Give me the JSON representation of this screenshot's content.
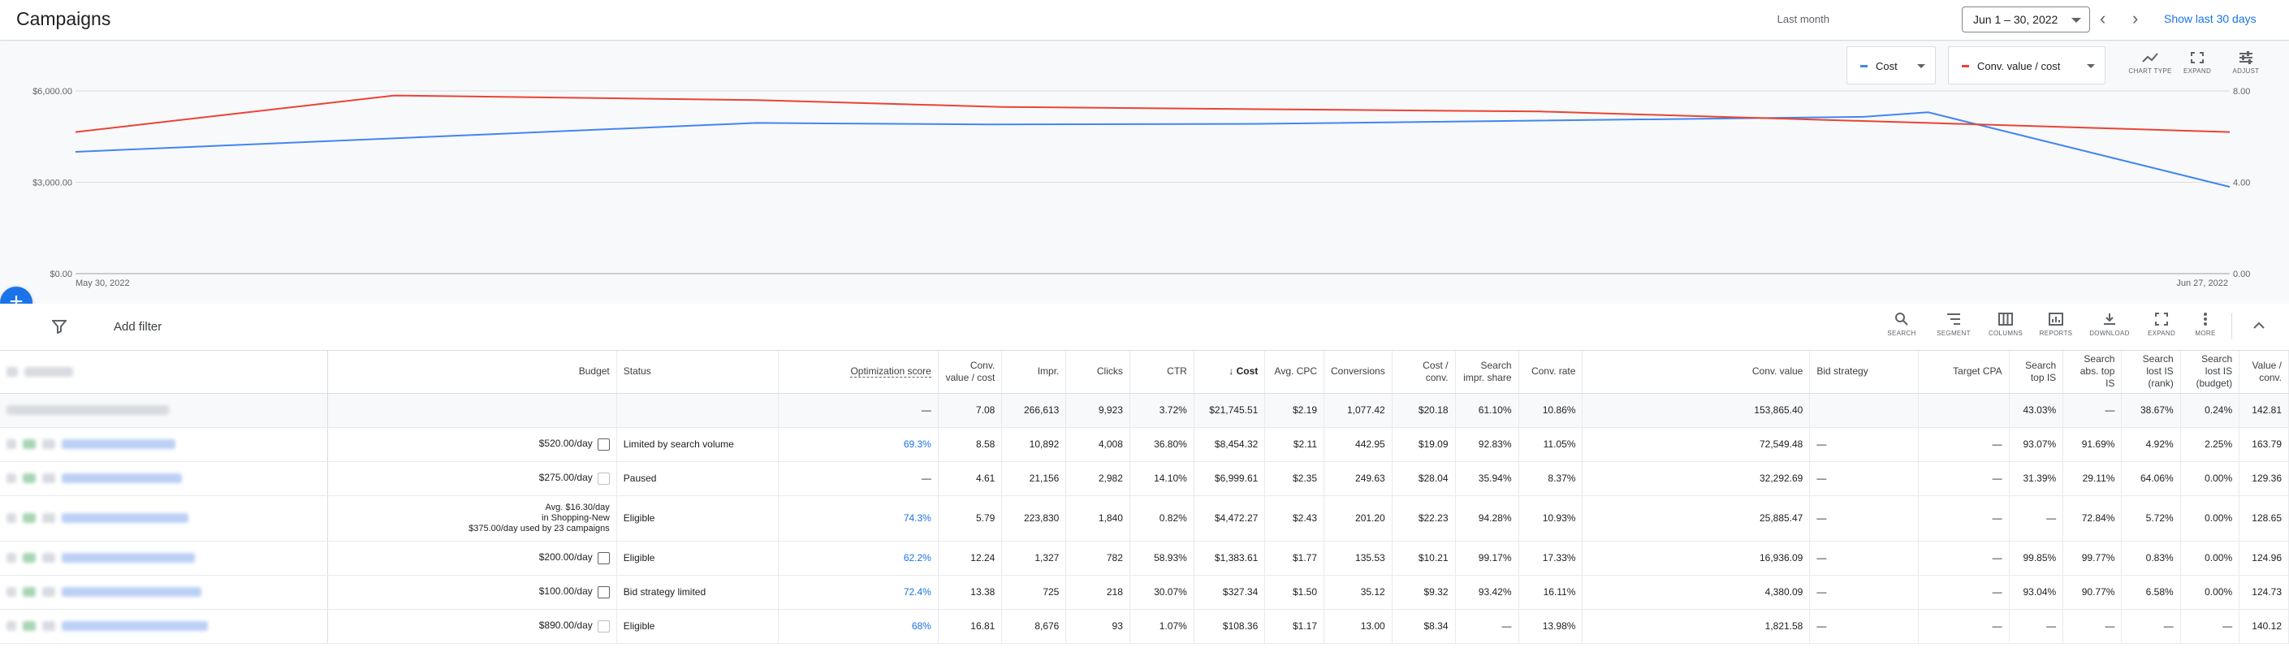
{
  "header": {
    "title": "Campaigns",
    "last_month_label": "Last month",
    "date_range": "Jun 1 – 30, 2022",
    "show_last": "Show last 30 days"
  },
  "chart_controls": {
    "metric1": {
      "label": "Cost",
      "color": "#4285f4"
    },
    "metric2": {
      "label": "Conv. value / cost",
      "color": "#ea4335"
    },
    "tools": [
      "CHART TYPE",
      "EXPAND",
      "ADJUST"
    ]
  },
  "chart_data": {
    "type": "line",
    "x_start_label": "May 30, 2022",
    "x_end_label": "Jun 27, 2022",
    "left_ticks": [
      "$6,000.00",
      "$3,000.00",
      "$0.00"
    ],
    "right_ticks": [
      "8.00",
      "4.00",
      "0.00"
    ],
    "left_ylim": [
      0,
      6000
    ],
    "right_ylim": [
      0,
      8
    ],
    "grid": true,
    "series": [
      {
        "name": "Cost",
        "axis": "left",
        "color": "#4285f4",
        "values": [
          4000,
          4950,
          4900,
          4920,
          5150,
          5300,
          2850
        ]
      },
      {
        "name": "Conv. value / cost",
        "axis": "right",
        "color": "#ea4335",
        "values": [
          6.2,
          7.8,
          7.6,
          7.3,
          7.2,
          7.1,
          6.6,
          6.2
        ]
      }
    ]
  },
  "filter": {
    "add_filter": "Add filter"
  },
  "table_tools": [
    "SEARCH",
    "SEGMENT",
    "COLUMNS",
    "REPORTS",
    "DOWNLOAD",
    "EXPAND",
    "MORE"
  ],
  "table": {
    "columns": [
      "Budget",
      "Status",
      "Optimization score",
      "Conv. value / cost",
      "Impr.",
      "Clicks",
      "CTR",
      "Cost",
      "Avg. CPC",
      "Conversions",
      "Cost / conv.",
      "Search impr. share",
      "Conv. rate",
      "Conv. value",
      "Bid strategy",
      "Target CPA",
      "Search top IS",
      "Search abs. top IS",
      "Search lost IS (rank)",
      "Search lost IS (budget)",
      "Value / conv."
    ],
    "total": [
      "",
      "",
      "—",
      "7.08",
      "266,613",
      "9,923",
      "3.72%",
      "$21,745.51",
      "$2.19",
      "1,077.42",
      "$20.18",
      "61.10%",
      "10.86%",
      "153,865.40",
      "",
      "",
      "43.03%",
      "—",
      "38.67%",
      "0.24%",
      "142.81"
    ],
    "rows": [
      {
        "budget": "$520.00/day",
        "budget_icon": "active",
        "status": "Limited by search volume",
        "vals": [
          "69.3%",
          "8.58",
          "10,892",
          "4,008",
          "36.80%",
          "$8,454.32",
          "$2.11",
          "442.95",
          "$19.09",
          "92.83%",
          "11.05%",
          "72,549.48",
          "—",
          "—",
          "93.07%",
          "91.69%",
          "4.92%",
          "2.25%",
          "163.79"
        ]
      },
      {
        "budget": "$275.00/day",
        "budget_icon": "faded",
        "status": "Paused",
        "vals": [
          "—",
          "4.61",
          "21,156",
          "2,982",
          "14.10%",
          "$6,999.61",
          "$2.35",
          "249.63",
          "$28.04",
          "35.94%",
          "8.37%",
          "32,292.69",
          "—",
          "—",
          "31.39%",
          "29.11%",
          "64.06%",
          "0.00%",
          "129.36"
        ]
      },
      {
        "budget": "Avg. $16.30/day",
        "budget2": "in Shopping-New",
        "budget3": "$375.00/day used by 23 campaigns",
        "status": "Eligible",
        "vals": [
          "74.3%",
          "5.79",
          "223,830",
          "1,840",
          "0.82%",
          "$4,472.27",
          "$2.43",
          "201.20",
          "$22.23",
          "94.28%",
          "10.93%",
          "25,885.47",
          "—",
          "—",
          "—",
          "72.84%",
          "5.72%",
          "0.00%",
          "128.65"
        ]
      },
      {
        "budget": "$200.00/day",
        "budget_icon": "active",
        "status": "Eligible",
        "vals": [
          "62.2%",
          "12.24",
          "1,327",
          "782",
          "58.93%",
          "$1,383.61",
          "$1.77",
          "135.53",
          "$10.21",
          "99.17%",
          "17.33%",
          "16,936.09",
          "—",
          "—",
          "99.85%",
          "99.77%",
          "0.83%",
          "0.00%",
          "124.96"
        ]
      },
      {
        "budget": "$100.00/day",
        "budget_icon": "active",
        "status": "Bid strategy limited",
        "vals": [
          "72.4%",
          "13.38",
          "725",
          "218",
          "30.07%",
          "$327.34",
          "$1.50",
          "35.12",
          "$9.32",
          "93.42%",
          "16.11%",
          "4,380.09",
          "—",
          "—",
          "93.04%",
          "90.77%",
          "6.58%",
          "0.00%",
          "124.73"
        ]
      },
      {
        "budget": "$890.00/day",
        "budget_icon": "faded",
        "status": "Eligible",
        "vals": [
          "68%",
          "16.81",
          "8,676",
          "93",
          "1.07%",
          "$108.36",
          "$1.17",
          "13.00",
          "$8.34",
          "—",
          "13.98%",
          "1,821.58",
          "—",
          "—",
          "—",
          "—",
          "—",
          "—",
          "140.12"
        ]
      }
    ]
  }
}
